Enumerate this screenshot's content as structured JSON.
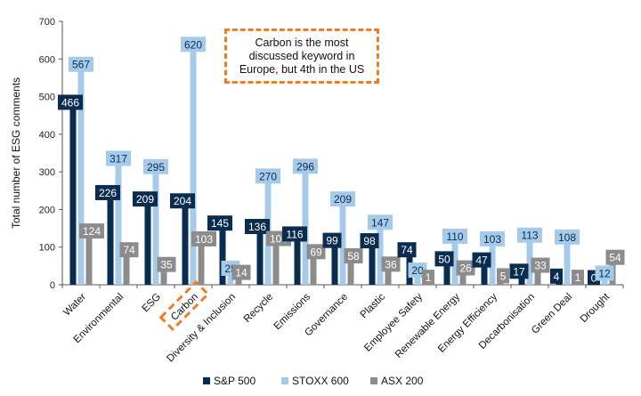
{
  "chart_data": {
    "type": "bar",
    "title": "",
    "xlabel": "",
    "ylabel": "Total number of ESG comments",
    "ylim": [
      0,
      700
    ],
    "yticks": [
      0,
      100,
      200,
      300,
      400,
      500,
      600,
      700
    ],
    "categories": [
      "Water",
      "Environmental",
      "ESG",
      "Carbon",
      "Diversity & Inclusion",
      "Recycle",
      "Emissions",
      "Governance",
      "Plastic",
      "Employee Safety",
      "Renewable Energy",
      "Energy Efficiency",
      "Decarbonisation",
      "Green Deal",
      "Drought"
    ],
    "series": [
      {
        "name": "S&P 500",
        "color": "#0a2d4f",
        "values": [
          466,
          226,
          209,
          204,
          145,
          136,
          116,
          99,
          98,
          74,
          50,
          47,
          17,
          4,
          0
        ]
      },
      {
        "name": "STOXX 600",
        "color": "#a6cbea",
        "values": [
          567,
          317,
          295,
          620,
          25,
          270,
          296,
          209,
          147,
          20,
          110,
          103,
          113,
          108,
          12
        ]
      },
      {
        "name": "ASX 200",
        "color": "#8c8c8c",
        "values": [
          124,
          74,
          35,
          103,
          14,
          104,
          69,
          58,
          36,
          1,
          26,
          5,
          33,
          1,
          54
        ]
      }
    ],
    "legend_position": "bottom",
    "highlighted_category": "Carbon",
    "annotation": "Carbon is the most discussed keyword in Europe, but 4th in the US"
  }
}
